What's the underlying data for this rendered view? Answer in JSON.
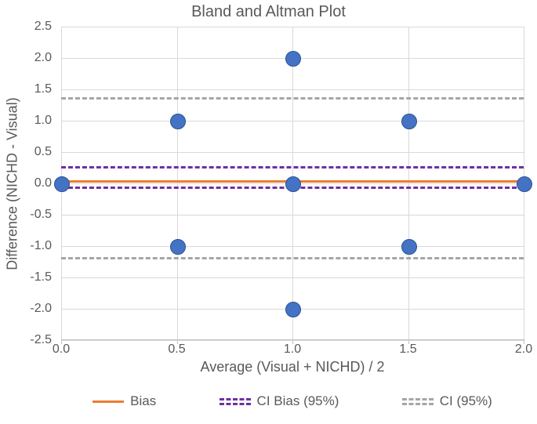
{
  "chart": {
    "type": "scatter",
    "title": "Bland and Altman Plot",
    "xlabel": "Average (Visual + NICHD) / 2",
    "ylabel": "Difference (NICHD - Visual)",
    "title_color": "#595959",
    "label_color": "#595959",
    "tick_color": "#595959",
    "background_color": "#ffffff",
    "grid_color": "#d9d9d9",
    "axis_color": "#bfbfbf",
    "title_fontsize": 20,
    "label_fontsize": 18,
    "tick_fontsize": 16,
    "xlim": [
      0.0,
      2.0
    ],
    "ylim": [
      -2.5,
      2.5
    ],
    "xticks": [
      0.0,
      0.5,
      1.0,
      1.5,
      2.0
    ],
    "yticks": [
      -2.5,
      -2.0,
      -1.5,
      -1.0,
      -0.5,
      0.0,
      0.5,
      1.0,
      1.5,
      2.0,
      2.5
    ],
    "points": [
      {
        "x": 0.0,
        "y": 0.0
      },
      {
        "x": 0.5,
        "y": 1.0
      },
      {
        "x": 0.5,
        "y": -1.0
      },
      {
        "x": 1.0,
        "y": 2.0
      },
      {
        "x": 1.0,
        "y": 0.0
      },
      {
        "x": 1.0,
        "y": -2.0
      },
      {
        "x": 1.5,
        "y": 1.0
      },
      {
        "x": 1.5,
        "y": -1.0
      },
      {
        "x": 2.0,
        "y": 0.0
      }
    ],
    "point_fill": "#4472c4",
    "point_border": "#2f528f",
    "point_radius": 9,
    "hlines": [
      {
        "id": "bias",
        "y": 0.05,
        "color": "#ed7d31",
        "dash": false,
        "width": 3
      },
      {
        "id": "ci-bias-upper",
        "y": 0.27,
        "color": "#7030a0",
        "dash": true,
        "width": 3
      },
      {
        "id": "ci-bias-lower",
        "y": -0.05,
        "color": "#7030a0",
        "dash": true,
        "width": 3
      },
      {
        "id": "ci-upper",
        "y": 1.38,
        "color": "#a6a6a6",
        "dash": true,
        "width": 3
      },
      {
        "id": "ci-lower",
        "y": -1.18,
        "color": "#a6a6a6",
        "dash": true,
        "width": 3
      }
    ],
    "legend": [
      {
        "label": "Bias",
        "color": "#ed7d31",
        "dash": false,
        "lines": 1
      },
      {
        "label": "CI Bias (95%)",
        "color": "#7030a0",
        "dash": true,
        "lines": 2
      },
      {
        "label": "CI (95%)",
        "color": "#a6a6a6",
        "dash": true,
        "lines": 2
      }
    ]
  }
}
